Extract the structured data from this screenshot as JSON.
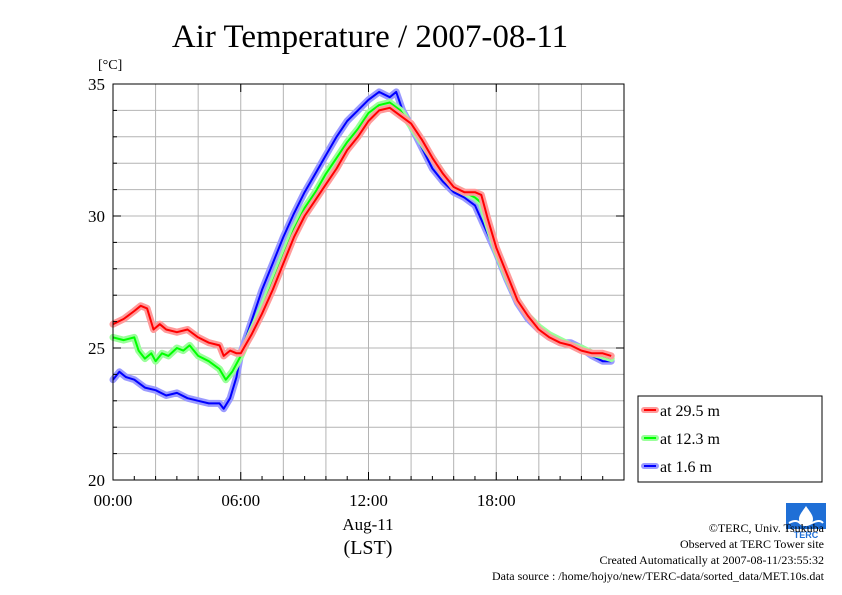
{
  "chart_data": {
    "type": "line",
    "title": "Air Temperature / 2007-08-11",
    "unit_label": "[°C]",
    "xlabel_date": "Aug-11",
    "xlabel": "(LST)",
    "x_ticks": [
      "00:00",
      "06:00",
      "12:00",
      "18:00"
    ],
    "y_ticks": [
      "20",
      "25",
      "30",
      "35"
    ],
    "xlim": [
      0,
      23.5
    ],
    "ylim": [
      20,
      35
    ],
    "grid": true,
    "legend_position": "right",
    "series": [
      {
        "name": "at 29.5 m",
        "color": "#ff0000",
        "glow": "#ff9a9a",
        "points": [
          [
            0,
            25.9
          ],
          [
            0.5,
            26.1
          ],
          [
            1.0,
            26.4
          ],
          [
            1.3,
            26.6
          ],
          [
            1.6,
            26.5
          ],
          [
            1.9,
            25.7
          ],
          [
            2.2,
            25.9
          ],
          [
            2.5,
            25.7
          ],
          [
            3.0,
            25.6
          ],
          [
            3.5,
            25.7
          ],
          [
            4.0,
            25.4
          ],
          [
            4.5,
            25.2
          ],
          [
            5.0,
            25.1
          ],
          [
            5.2,
            24.7
          ],
          [
            5.5,
            24.9
          ],
          [
            5.8,
            24.8
          ],
          [
            6.0,
            24.8
          ],
          [
            6.5,
            25.5
          ],
          [
            7.0,
            26.3
          ],
          [
            7.5,
            27.2
          ],
          [
            8.0,
            28.2
          ],
          [
            8.5,
            29.2
          ],
          [
            9.0,
            30.0
          ],
          [
            9.5,
            30.6
          ],
          [
            10.0,
            31.2
          ],
          [
            10.5,
            31.8
          ],
          [
            11.0,
            32.5
          ],
          [
            11.5,
            33.0
          ],
          [
            12.0,
            33.6
          ],
          [
            12.5,
            34.0
          ],
          [
            13.0,
            34.1
          ],
          [
            13.5,
            33.8
          ],
          [
            14.0,
            33.5
          ],
          [
            14.5,
            32.9
          ],
          [
            15.0,
            32.2
          ],
          [
            15.5,
            31.6
          ],
          [
            16.0,
            31.1
          ],
          [
            16.5,
            30.9
          ],
          [
            17.0,
            30.9
          ],
          [
            17.3,
            30.8
          ],
          [
            17.6,
            29.9
          ],
          [
            18.0,
            28.8
          ],
          [
            18.5,
            27.8
          ],
          [
            19.0,
            26.8
          ],
          [
            19.5,
            26.2
          ],
          [
            20.0,
            25.7
          ],
          [
            20.5,
            25.4
          ],
          [
            21.0,
            25.2
          ],
          [
            21.5,
            25.1
          ],
          [
            22.0,
            24.9
          ],
          [
            22.5,
            24.8
          ],
          [
            23.0,
            24.8
          ],
          [
            23.4,
            24.7
          ]
        ]
      },
      {
        "name": "at 12.3 m",
        "color": "#00ff00",
        "glow": "#9aff9a",
        "points": [
          [
            0,
            25.4
          ],
          [
            0.5,
            25.3
          ],
          [
            1.0,
            25.4
          ],
          [
            1.2,
            24.9
          ],
          [
            1.5,
            24.6
          ],
          [
            1.8,
            24.8
          ],
          [
            2.0,
            24.5
          ],
          [
            2.3,
            24.8
          ],
          [
            2.6,
            24.7
          ],
          [
            3.0,
            25.0
          ],
          [
            3.3,
            24.9
          ],
          [
            3.6,
            25.1
          ],
          [
            4.0,
            24.7
          ],
          [
            4.5,
            24.5
          ],
          [
            5.0,
            24.2
          ],
          [
            5.3,
            23.8
          ],
          [
            5.6,
            24.1
          ],
          [
            6.0,
            24.7
          ],
          [
            6.5,
            25.6
          ],
          [
            7.0,
            26.5
          ],
          [
            7.5,
            27.5
          ],
          [
            8.0,
            28.5
          ],
          [
            8.5,
            29.5
          ],
          [
            9.0,
            30.3
          ],
          [
            9.5,
            30.9
          ],
          [
            10.0,
            31.6
          ],
          [
            10.5,
            32.2
          ],
          [
            11.0,
            32.8
          ],
          [
            11.5,
            33.3
          ],
          [
            12.0,
            33.9
          ],
          [
            12.5,
            34.2
          ],
          [
            13.0,
            34.3
          ],
          [
            13.5,
            34.0
          ],
          [
            14.0,
            33.4
          ],
          [
            14.5,
            32.8
          ],
          [
            15.0,
            32.2
          ],
          [
            15.5,
            31.6
          ],
          [
            16.0,
            31.1
          ],
          [
            16.5,
            30.9
          ],
          [
            17.0,
            30.7
          ],
          [
            17.3,
            30.5
          ],
          [
            17.6,
            29.7
          ],
          [
            18.0,
            28.7
          ],
          [
            18.5,
            27.7
          ],
          [
            19.0,
            26.8
          ],
          [
            19.5,
            26.2
          ],
          [
            20.0,
            25.8
          ],
          [
            20.5,
            25.5
          ],
          [
            21.0,
            25.3
          ],
          [
            21.5,
            25.1
          ],
          [
            22.0,
            25.0
          ],
          [
            22.5,
            24.8
          ],
          [
            23.0,
            24.7
          ],
          [
            23.4,
            24.6
          ]
        ]
      },
      {
        "name": "at 1.6 m",
        "color": "#0000ff",
        "glow": "#9a9aff",
        "points": [
          [
            0,
            23.8
          ],
          [
            0.3,
            24.1
          ],
          [
            0.6,
            23.9
          ],
          [
            1.0,
            23.8
          ],
          [
            1.5,
            23.5
          ],
          [
            2.0,
            23.4
          ],
          [
            2.5,
            23.2
          ],
          [
            3.0,
            23.3
          ],
          [
            3.5,
            23.1
          ],
          [
            4.0,
            23.0
          ],
          [
            4.5,
            22.9
          ],
          [
            5.0,
            22.9
          ],
          [
            5.2,
            22.7
          ],
          [
            5.5,
            23.1
          ],
          [
            5.8,
            23.9
          ],
          [
            6.0,
            24.8
          ],
          [
            6.5,
            26.0
          ],
          [
            7.0,
            27.2
          ],
          [
            7.5,
            28.2
          ],
          [
            8.0,
            29.2
          ],
          [
            8.5,
            30.1
          ],
          [
            9.0,
            30.9
          ],
          [
            9.5,
            31.6
          ],
          [
            10.0,
            32.3
          ],
          [
            10.5,
            33.0
          ],
          [
            11.0,
            33.6
          ],
          [
            11.5,
            34.0
          ],
          [
            12.0,
            34.4
          ],
          [
            12.5,
            34.7
          ],
          [
            13.0,
            34.5
          ],
          [
            13.3,
            34.7
          ],
          [
            13.6,
            34.0
          ],
          [
            14.0,
            33.4
          ],
          [
            14.5,
            32.6
          ],
          [
            15.0,
            31.8
          ],
          [
            15.5,
            31.3
          ],
          [
            16.0,
            30.9
          ],
          [
            16.5,
            30.7
          ],
          [
            17.0,
            30.4
          ],
          [
            17.5,
            29.5
          ],
          [
            18.0,
            28.6
          ],
          [
            18.5,
            27.6
          ],
          [
            19.0,
            26.7
          ],
          [
            19.5,
            26.1
          ],
          [
            20.0,
            25.7
          ],
          [
            20.5,
            25.4
          ],
          [
            21.0,
            25.2
          ],
          [
            21.5,
            25.2
          ],
          [
            22.0,
            25.0
          ],
          [
            22.5,
            24.7
          ],
          [
            23.0,
            24.5
          ],
          [
            23.4,
            24.5
          ]
        ]
      }
    ]
  },
  "credits": {
    "copyright": "©TERC, Univ. Tsukuba",
    "observed": "Observed at TERC Tower site",
    "created": "Created Automatically at 2007-08-11/23:55:32",
    "source": "Data source : /home/hojyo/new/TERC-data/sorted_data/MET.10s.dat"
  },
  "logo": {
    "text": "TERC",
    "icon": "terc-logo-icon",
    "color": "#1f6fd6"
  }
}
